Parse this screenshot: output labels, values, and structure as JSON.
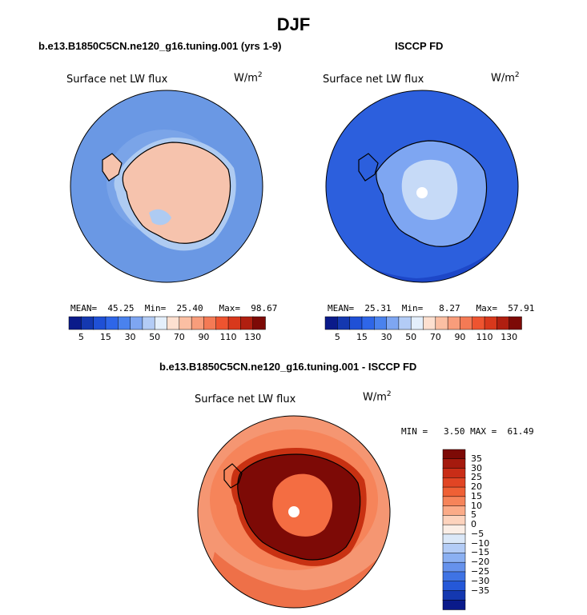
{
  "figure": {
    "title": "DJF",
    "bottom_title": "b.e13.B1850C5CN.ne120_g16.tuning.001 - ISCCP FD"
  },
  "panels": [
    {
      "title": "b.e13.B1850C5CN.ne120_g16.tuning.001 (yrs 1-9)",
      "variable": "Surface net LW flux",
      "units_base": "W/m",
      "units_exp": "2",
      "mean_label": "MEAN=",
      "mean": "45.25",
      "min_label": "Min=",
      "min": "25.40",
      "max_label": "Max=",
      "max": "98.67"
    },
    {
      "title": "ISCCP FD",
      "variable": "Surface net LW flux",
      "units_base": "W/m",
      "units_exp": "2",
      "mean_label": "MEAN=",
      "mean": "25.31",
      "min_label": "Min=",
      "min": "8.27",
      "max_label": "Max=",
      "max": "57.91"
    }
  ],
  "diff_panel": {
    "variable": "Surface net LW flux",
    "units_base": "W/m",
    "units_exp": "2",
    "min_label": "MIN =",
    "min": "3.50",
    "max_label": "MAX =",
    "max": "61.49"
  },
  "colorbar_top": {
    "ticks": [
      "5",
      "15",
      "30",
      "50",
      "70",
      "90",
      "110",
      "130"
    ],
    "colors": [
      "#0a1a8a",
      "#1438b0",
      "#1f50d6",
      "#2e66e8",
      "#4a82ee",
      "#7ea6f2",
      "#b3ccf6",
      "#e4effb",
      "#fde0d0",
      "#fbbfa3",
      "#f89d7b",
      "#f47a55",
      "#ee5430",
      "#d8381c",
      "#b01f10",
      "#7d0a06"
    ]
  },
  "colorbar_diff": {
    "ticks": [
      "35",
      "30",
      "25",
      "20",
      "15",
      "10",
      "5",
      "0",
      "−5",
      "−10",
      "−15",
      "−20",
      "−25",
      "−30",
      "−35"
    ],
    "colors": [
      "#7d0a06",
      "#a51a0e",
      "#c92d17",
      "#e14524",
      "#ef6035",
      "#f6845a",
      "#fbab88",
      "#fdd3bd",
      "#fbeee6",
      "#dbe8f8",
      "#b3ccf6",
      "#8bb0f2",
      "#6692ec",
      "#3f73e4",
      "#2558d8",
      "#1438b0",
      "#0a1a8a"
    ]
  },
  "map_colors": {
    "model_ocean": "#6a98e4",
    "model_coast": "#aecbf2",
    "model_land": "#f6c3ad",
    "obs_ocean": "#2c5fdd",
    "obs_ocean_dark": "#1d47c8",
    "obs_land": "#7ea6f2",
    "obs_interior": "#c6daf7",
    "diff_ocean": "#f59672",
    "diff_ocean_dark": "#ee7048",
    "diff_coast": "#c83112",
    "diff_land": "#7d0a06",
    "diff_interior": "#f46d42"
  }
}
